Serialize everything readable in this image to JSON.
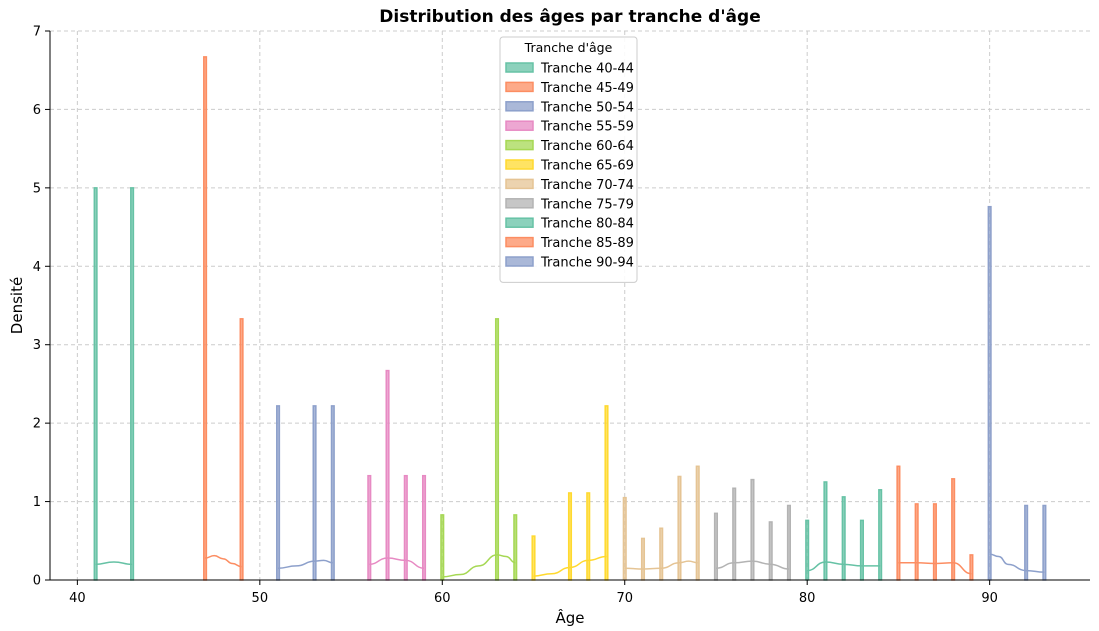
{
  "chart_data": {
    "type": "bar",
    "title": "Distribution des âges par tranche d'âge",
    "xlabel": "Âge",
    "ylabel": "Densité",
    "xlim": [
      38.5,
      95.5
    ],
    "ylim": [
      0,
      7
    ],
    "xticks": [
      40,
      50,
      60,
      70,
      80,
      90
    ],
    "yticks": [
      0,
      1,
      2,
      3,
      4,
      5,
      6,
      7
    ],
    "grid": true,
    "legend": {
      "title": "Tranche d'âge",
      "placement": "top-center"
    },
    "series": [
      {
        "name": "Tranche 40-44",
        "color": "#66c2a5",
        "x": [
          41,
          43
        ],
        "values": [
          5.0,
          5.0
        ],
        "kde": [
          [
            41,
            0.2
          ],
          [
            42,
            0.23
          ],
          [
            43,
            0.2
          ]
        ]
      },
      {
        "name": "Tranche 45-49",
        "color": "#fc8d62",
        "x": [
          47,
          49
        ],
        "values": [
          6.67,
          3.33
        ],
        "kde": [
          [
            47,
            0.28
          ],
          [
            47.5,
            0.31
          ],
          [
            48,
            0.27
          ],
          [
            48.5,
            0.21
          ],
          [
            49,
            0.17
          ]
        ]
      },
      {
        "name": "Tranche 50-54",
        "color": "#8da0cb",
        "x": [
          51,
          53,
          54
        ],
        "values": [
          2.22,
          2.22,
          2.22
        ],
        "kde": [
          [
            51,
            0.15
          ],
          [
            52,
            0.18
          ],
          [
            53,
            0.24
          ],
          [
            53.5,
            0.25
          ],
          [
            54,
            0.22
          ]
        ]
      },
      {
        "name": "Tranche 55-59",
        "color": "#e78ac3",
        "x": [
          56,
          57,
          58,
          59
        ],
        "values": [
          1.33,
          2.67,
          1.33,
          1.33
        ],
        "kde": [
          [
            56,
            0.2
          ],
          [
            57,
            0.28
          ],
          [
            58,
            0.25
          ],
          [
            59,
            0.15
          ]
        ]
      },
      {
        "name": "Tranche 60-64",
        "color": "#a6d854",
        "x": [
          60,
          63,
          64
        ],
        "values": [
          0.83,
          3.33,
          0.83
        ],
        "kde": [
          [
            60,
            0.04
          ],
          [
            61,
            0.07
          ],
          [
            62,
            0.18
          ],
          [
            63,
            0.32
          ],
          [
            63.5,
            0.3
          ],
          [
            64,
            0.22
          ]
        ]
      },
      {
        "name": "Tranche 65-69",
        "color": "#ffd92f",
        "x": [
          65,
          67,
          68,
          69
        ],
        "values": [
          0.56,
          1.11,
          1.11,
          2.22
        ],
        "kde": [
          [
            65,
            0.05
          ],
          [
            66,
            0.08
          ],
          [
            67,
            0.16
          ],
          [
            68,
            0.25
          ],
          [
            69,
            0.3
          ]
        ]
      },
      {
        "name": "Tranche 70-74",
        "color": "#e5c494",
        "x": [
          70,
          71,
          72,
          73,
          74
        ],
        "values": [
          1.05,
          0.53,
          0.66,
          1.32,
          1.45
        ],
        "kde": [
          [
            70,
            0.15
          ],
          [
            71,
            0.14
          ],
          [
            72,
            0.15
          ],
          [
            73,
            0.22
          ],
          [
            73.5,
            0.24
          ],
          [
            74,
            0.22
          ]
        ]
      },
      {
        "name": "Tranche 75-79",
        "color": "#b3b3b3",
        "x": [
          75,
          76,
          77,
          78,
          79
        ],
        "values": [
          0.85,
          1.17,
          1.28,
          0.74,
          0.95
        ],
        "kde": [
          [
            75,
            0.15
          ],
          [
            76,
            0.22
          ],
          [
            77,
            0.24
          ],
          [
            78,
            0.2
          ],
          [
            79,
            0.14
          ]
        ]
      },
      {
        "name": "Tranche 80-84",
        "color": "#66c2a5",
        "x": [
          80,
          81,
          82,
          83,
          84
        ],
        "values": [
          0.76,
          1.25,
          1.06,
          0.76,
          1.15
        ],
        "kde": [
          [
            80,
            0.12
          ],
          [
            81,
            0.23
          ],
          [
            82,
            0.2
          ],
          [
            83,
            0.18
          ],
          [
            84,
            0.18
          ]
        ]
      },
      {
        "name": "Tranche 85-89",
        "color": "#fc8d62",
        "x": [
          85,
          86,
          87,
          88,
          89
        ],
        "values": [
          1.45,
          0.97,
          0.97,
          1.29,
          0.32
        ],
        "kde": [
          [
            85,
            0.22
          ],
          [
            86,
            0.22
          ],
          [
            87,
            0.21
          ],
          [
            88,
            0.22
          ],
          [
            89,
            0.08
          ]
        ]
      },
      {
        "name": "Tranche 90-94",
        "color": "#8da0cb",
        "x": [
          90,
          92,
          93
        ],
        "values": [
          4.76,
          0.95,
          0.95
        ],
        "kde": [
          [
            90,
            0.33
          ],
          [
            90.5,
            0.3
          ],
          [
            91,
            0.2
          ],
          [
            92,
            0.12
          ],
          [
            93,
            0.1
          ]
        ]
      }
    ]
  }
}
